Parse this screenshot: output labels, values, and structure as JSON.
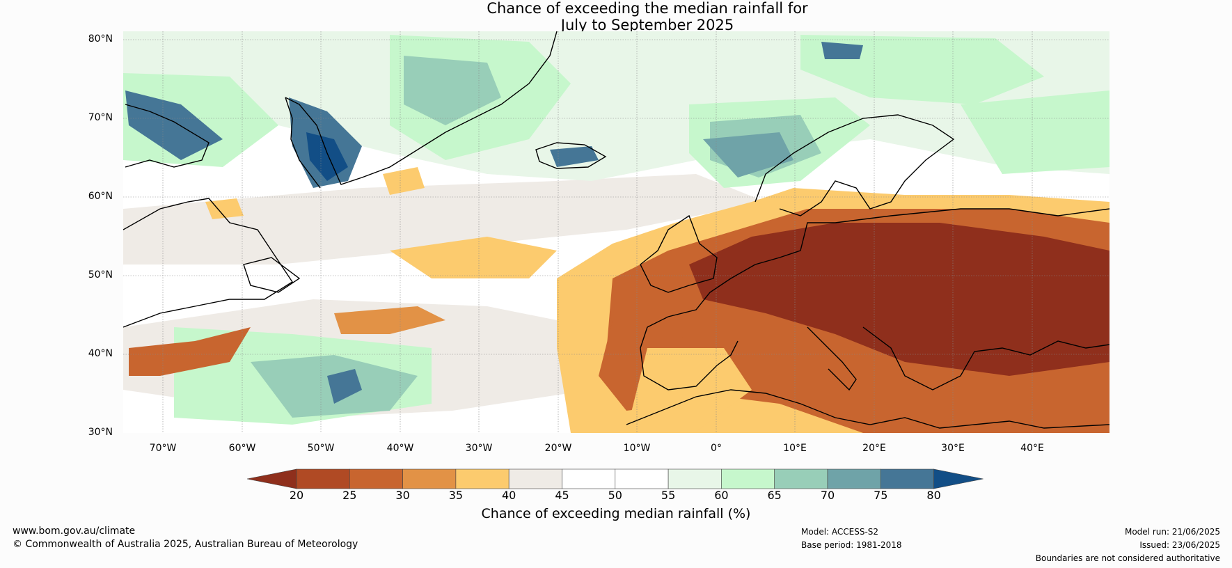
{
  "title_line1": "Chance of exceeding the median rainfall for",
  "title_line2": "July to September 2025",
  "lat_labels": [
    "80°N",
    "70°N",
    "60°N",
    "50°N",
    "40°N",
    "30°N"
  ],
  "lon_labels": [
    "70°W",
    "60°W",
    "50°W",
    "40°W",
    "30°W",
    "20°W",
    "10°W",
    "0°",
    "10°E",
    "20°E",
    "30°E",
    "40°E"
  ],
  "colorbar": {
    "ticks": [
      "20",
      "25",
      "30",
      "35",
      "40",
      "45",
      "50",
      "55",
      "60",
      "65",
      "70",
      "75",
      "80"
    ],
    "colors": [
      "#8f2f1c",
      "#b04a24",
      "#c8652f",
      "#e29246",
      "#fccb6e",
      "#efebe6",
      "#ffffff",
      "#ffffff",
      "#e8f6e8",
      "#c6f7cc",
      "#98ceb8",
      "#6fa3a8",
      "#457696",
      "#124e86"
    ],
    "label": "Chance of exceeding median rainfall (%)"
  },
  "colors": {
    "dry_strong": "#8f2f1c",
    "dry": "#c8652f",
    "dry_light": "#fccb6e",
    "neutral": "#efebe6",
    "wet_light": "#c6f7cc",
    "wet": "#98ceb8",
    "wet_strong": "#124e86"
  },
  "footer": {
    "website": "www.bom.gov.au/climate",
    "copyright": "© Commonwealth of Australia 2025, Australian Bureau of Meteorology",
    "model": "Model: ACCESS-S2",
    "base_period": "Base period: 1981-2018",
    "model_run": "Model run: 21/06/2025",
    "issued": "Issued: 23/06/2025",
    "disclaimer": "Boundaries are not considered authoritative"
  }
}
